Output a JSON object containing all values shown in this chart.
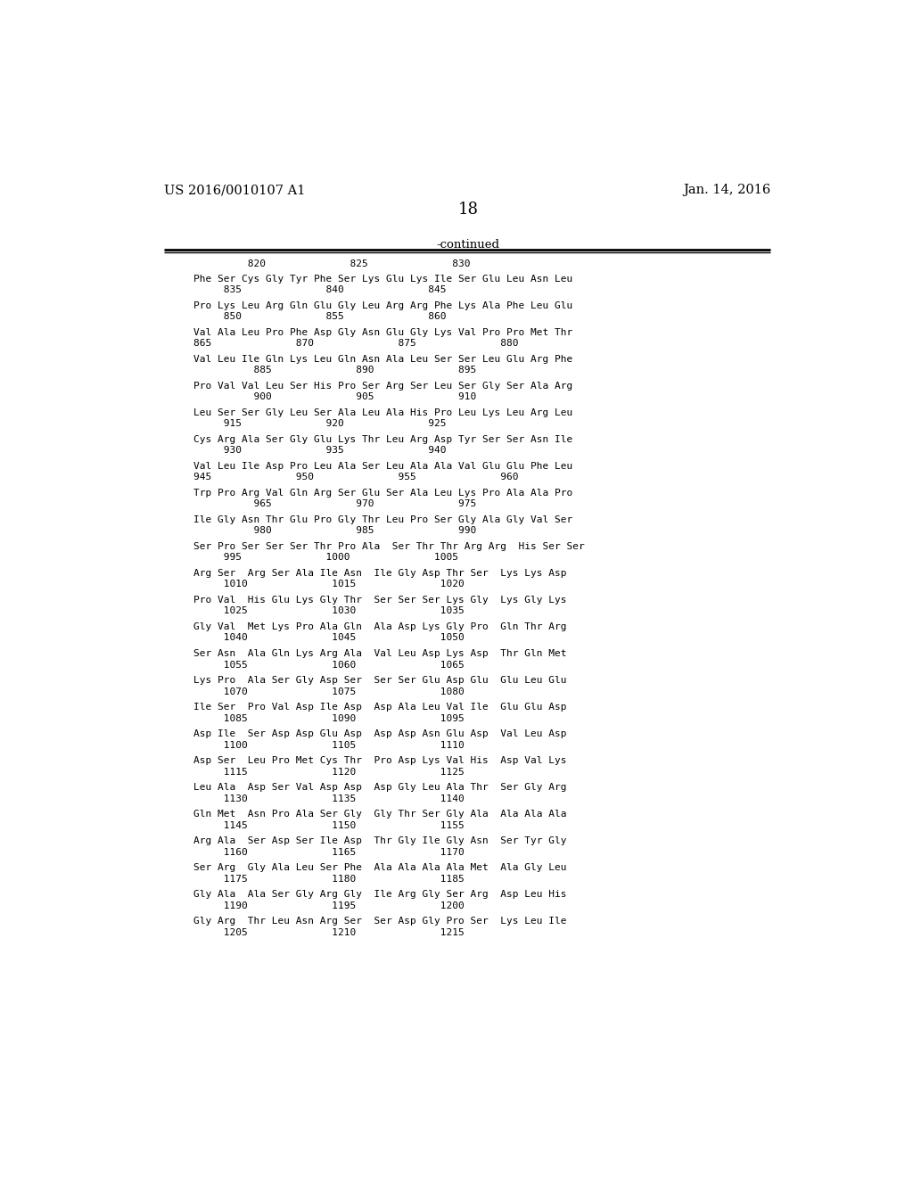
{
  "header_left": "US 2016/0010107 A1",
  "header_right": "Jan. 14, 2016",
  "page_number": "18",
  "continued_label": "-continued",
  "background_color": "#ffffff",
  "text_color": "#000000",
  "blocks": [
    {
      "seq": "Phe Ser Cys Gly Tyr Phe Ser Lys Glu Lys Ile Ser Glu Leu Asn Leu",
      "num": "     835              840              845"
    },
    {
      "seq": "Pro Lys Leu Arg Gln Glu Gly Leu Arg Arg Phe Lys Ala Phe Leu Glu",
      "num": "     850              855              860"
    },
    {
      "seq": "Val Ala Leu Pro Phe Asp Gly Asn Glu Gly Lys Val Pro Pro Met Thr",
      "num": "865              870              875              880"
    },
    {
      "seq": "Val Leu Ile Gln Lys Leu Gln Asn Ala Leu Ser Ser Leu Glu Arg Phe",
      "num": "          885              890              895"
    },
    {
      "seq": "Pro Val Val Leu Ser His Pro Ser Arg Ser Leu Ser Gly Ser Ala Arg",
      "num": "          900              905              910"
    },
    {
      "seq": "Leu Ser Ser Gly Leu Ser Ala Leu Ala His Pro Leu Lys Leu Arg Leu",
      "num": "     915              920              925"
    },
    {
      "seq": "Cys Arg Ala Ser Gly Glu Lys Thr Leu Arg Asp Tyr Ser Ser Asn Ile",
      "num": "     930              935              940"
    },
    {
      "seq": "Val Leu Ile Asp Pro Leu Ala Ser Leu Ala Ala Val Glu Glu Phe Leu",
      "num": "945              950              955              960"
    },
    {
      "seq": "Trp Pro Arg Val Gln Arg Ser Glu Ser Ala Leu Lys Pro Ala Ala Pro",
      "num": "          965              970              975"
    },
    {
      "seq": "Ile Gly Asn Thr Glu Pro Gly Thr Leu Pro Ser Gly Ala Gly Val Ser",
      "num": "          980              985              990"
    },
    {
      "seq": "Ser Pro Ser Ser Ser Thr Pro Ala  Ser Thr Thr Arg Arg  His Ser Ser",
      "num": "     995              1000              1005"
    },
    {
      "seq": "Arg Ser  Arg Ser Ala Ile Asn  Ile Gly Asp Thr Ser  Lys Lys Asp",
      "num": "     1010              1015              1020"
    },
    {
      "seq": "Pro Val  His Glu Lys Gly Thr  Ser Ser Ser Lys Gly  Lys Gly Lys",
      "num": "     1025              1030              1035"
    },
    {
      "seq": "Gly Val  Met Lys Pro Ala Gln  Ala Asp Lys Gly Pro  Gln Thr Arg",
      "num": "     1040              1045              1050"
    },
    {
      "seq": "Ser Asn  Ala Gln Lys Arg Ala  Val Leu Asp Lys Asp  Thr Gln Met",
      "num": "     1055              1060              1065"
    },
    {
      "seq": "Lys Pro  Ala Ser Gly Asp Ser  Ser Ser Glu Asp Glu  Glu Leu Glu",
      "num": "     1070              1075              1080"
    },
    {
      "seq": "Ile Ser  Pro Val Asp Ile Asp  Asp Ala Leu Val Ile  Glu Glu Asp",
      "num": "     1085              1090              1095"
    },
    {
      "seq": "Asp Ile  Ser Asp Asp Glu Asp  Asp Asp Asn Glu Asp  Val Leu Asp",
      "num": "     1100              1105              1110"
    },
    {
      "seq": "Asp Ser  Leu Pro Met Cys Thr  Pro Asp Lys Val His  Asp Val Lys",
      "num": "     1115              1120              1125"
    },
    {
      "seq": "Leu Ala  Asp Ser Val Asp Asp  Asp Gly Leu Ala Thr  Ser Gly Arg",
      "num": "     1130              1135              1140"
    },
    {
      "seq": "Gln Met  Asn Pro Ala Ser Gly  Gly Thr Ser Gly Ala  Ala Ala Ala",
      "num": "     1145              1150              1155"
    },
    {
      "seq": "Arg Ala  Ser Asp Ser Ile Asp  Thr Gly Ile Gly Asn  Ser Tyr Gly",
      "num": "     1160              1165              1170"
    },
    {
      "seq": "Ser Arg  Gly Ala Leu Ser Phe  Ala Ala Ala Ala Met  Ala Gly Leu",
      "num": "     1175              1180              1185"
    },
    {
      "seq": "Gly Ala  Ala Ser Gly Arg Gly  Ile Arg Gly Ser Arg  Asp Leu His",
      "num": "     1190              1195              1200"
    },
    {
      "seq": "Gly Arg  Thr Leu Asn Arg Ser  Ser Asp Gly Pro Ser  Lys Leu Ile",
      "num": "     1205              1210              1215"
    }
  ],
  "header_numbers": "         820              825              830"
}
